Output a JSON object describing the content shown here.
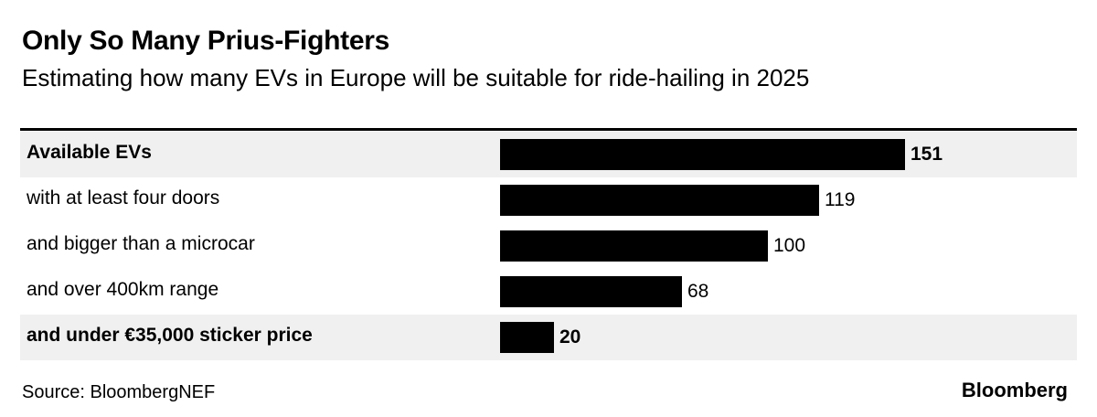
{
  "header": {
    "title": "Only So Many Prius-Fighters",
    "subtitle": "Estimating how many EVs in Europe will be suitable for ride-hailing in 2025"
  },
  "chart_data": {
    "type": "bar",
    "orientation": "horizontal",
    "title": "Only So Many Prius-Fighters",
    "subtitle": "Estimating how many EVs in Europe will be suitable for ride-hailing in 2025",
    "xlabel": "",
    "ylabel": "",
    "categories": [
      "Available EVs",
      "with at least four doors",
      "and bigger than a microcar",
      "and over 400km range",
      "and under €35,000 sticker price"
    ],
    "values": [
      151,
      119,
      100,
      68,
      20
    ],
    "value_labels": [
      "151",
      "119",
      "100",
      "68",
      "20"
    ],
    "emphasized": [
      true,
      false,
      false,
      false,
      true
    ],
    "xlim": [
      0,
      151
    ],
    "bar_color": "#000000",
    "highlight_background": "#f0f0f0",
    "grid": false,
    "legend": "none"
  },
  "footer": {
    "source": "Source: BloombergNEF",
    "brand": "Bloomberg"
  }
}
